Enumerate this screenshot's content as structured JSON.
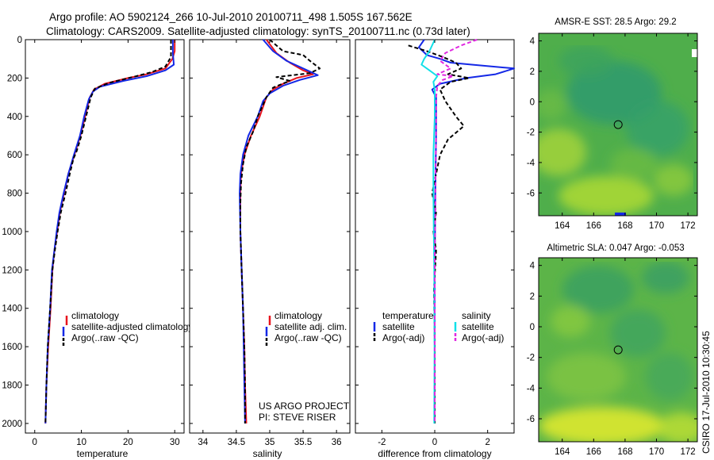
{
  "title_line1": "Argo profile: AO 5902124_266 10-Jul-2010 20100711_498 1.505S 167.562E",
  "title_line2": "Climatology: CARS2009. Satellite-adjusted climatology: synTS_20100711.nc (0.73d later)",
  "credit": [
    "US ARGO PROJECT",
    "PI: STEVE RISER"
  ],
  "footer": "CSIRO 17-Jul-2010 10:30:45",
  "colors": {
    "climatology": "#e8141e",
    "satellite": "#1428e6",
    "argo": "#000000",
    "sat_diff_salt": "#10e0e8",
    "argo_diff_salt": "#e028e0"
  },
  "chart_data": [
    {
      "type": "line",
      "id": "temperature",
      "xlabel": "temperature",
      "xlim": [
        -2,
        32
      ],
      "ylim": [
        2050,
        0
      ],
      "xticks": [
        0,
        10,
        20,
        30
      ],
      "yticks": [
        0,
        200,
        400,
        600,
        800,
        1000,
        1200,
        1400,
        1600,
        1800,
        2000
      ],
      "legend": [
        "climatology",
        "satellite-adjusted climatology",
        "Argo(..raw -QC)"
      ],
      "series": [
        {
          "name": "climatology",
          "color": "red",
          "dash": false,
          "points": [
            [
              30.0,
              0
            ],
            [
              30.0,
              60
            ],
            [
              29.5,
              100
            ],
            [
              28.0,
              150
            ],
            [
              24.0,
              180
            ],
            [
              20.0,
              200
            ],
            [
              15.0,
              230
            ],
            [
              12.7,
              260
            ],
            [
              11.8,
              300
            ],
            [
              10.8,
              400
            ],
            [
              9.8,
              500
            ],
            [
              8.5,
              600
            ],
            [
              7.2,
              700
            ],
            [
              6.3,
              800
            ],
            [
              5.4,
              900
            ],
            [
              4.8,
              1000
            ],
            [
              4.2,
              1100
            ],
            [
              3.8,
              1200
            ],
            [
              3.4,
              1400
            ],
            [
              2.9,
              1600
            ],
            [
              2.5,
              1800
            ],
            [
              2.3,
              2000
            ]
          ]
        },
        {
          "name": "satellite-adjusted climatology",
          "color": "blue",
          "dash": false,
          "points": [
            [
              29.6,
              0
            ],
            [
              29.6,
              70
            ],
            [
              29.8,
              130
            ],
            [
              28.0,
              160
            ],
            [
              24.0,
              190
            ],
            [
              19.0,
              215
            ],
            [
              14.0,
              245
            ],
            [
              12.5,
              270
            ],
            [
              11.6,
              310
            ],
            [
              10.6,
              400
            ],
            [
              9.7,
              500
            ],
            [
              8.4,
              600
            ],
            [
              7.2,
              700
            ],
            [
              6.2,
              800
            ],
            [
              5.3,
              900
            ],
            [
              4.7,
              1000
            ],
            [
              4.2,
              1100
            ],
            [
              3.7,
              1200
            ],
            [
              3.3,
              1400
            ],
            [
              2.8,
              1600
            ],
            [
              2.5,
              1800
            ],
            [
              2.3,
              2000
            ]
          ]
        },
        {
          "name": "Argo(..raw -QC)",
          "color": "black",
          "dash": true,
          "points": [
            [
              29.2,
              0
            ],
            [
              29.2,
              90
            ],
            [
              28.0,
              140
            ],
            [
              25.0,
              170
            ],
            [
              21.0,
              195
            ],
            [
              16.0,
              225
            ],
            [
              12.9,
              255
            ],
            [
              12.0,
              300
            ],
            [
              11.0,
              400
            ],
            [
              10.0,
              500
            ],
            [
              9.0,
              580
            ],
            [
              8.3,
              620
            ],
            [
              7.5,
              700
            ],
            [
              6.6,
              800
            ],
            [
              5.6,
              900
            ],
            [
              4.9,
              1000
            ],
            [
              4.3,
              1100
            ],
            [
              3.8,
              1200
            ],
            [
              3.3,
              1400
            ],
            [
              2.8,
              1600
            ],
            [
              2.5,
              1800
            ],
            [
              2.3,
              2000
            ]
          ]
        }
      ]
    },
    {
      "type": "line",
      "id": "salinity",
      "xlabel": "salinity",
      "xlim": [
        33.8,
        36.2
      ],
      "ylim": [
        2050,
        0
      ],
      "xticks": [
        34,
        34.5,
        35,
        35.5,
        36
      ],
      "yticks": [
        0,
        200,
        400,
        600,
        800,
        1000,
        1200,
        1400,
        1600,
        1800,
        2000
      ],
      "legend": [
        "climatology",
        "satellite adj. clim.",
        "Argo(..raw -QC)"
      ],
      "series": [
        {
          "name": "climatology",
          "color": "red",
          "dash": false,
          "points": [
            [
              34.95,
              0
            ],
            [
              35.1,
              70
            ],
            [
              35.3,
              120
            ],
            [
              35.5,
              160
            ],
            [
              35.65,
              180
            ],
            [
              35.4,
              200
            ],
            [
              35.2,
              230
            ],
            [
              35.05,
              260
            ],
            [
              34.95,
              300
            ],
            [
              34.85,
              400
            ],
            [
              34.72,
              500
            ],
            [
              34.62,
              600
            ],
            [
              34.57,
              700
            ],
            [
              34.56,
              800
            ],
            [
              34.56,
              1000
            ],
            [
              34.58,
              1200
            ],
            [
              34.6,
              1400
            ],
            [
              34.62,
              1600
            ],
            [
              34.63,
              1800
            ],
            [
              34.65,
              2000
            ]
          ]
        },
        {
          "name": "satellite adj. clim.",
          "color": "blue",
          "dash": false,
          "points": [
            [
              34.9,
              0
            ],
            [
              35.05,
              60
            ],
            [
              35.25,
              110
            ],
            [
              35.5,
              150
            ],
            [
              35.72,
              185
            ],
            [
              35.45,
              210
            ],
            [
              35.2,
              240
            ],
            [
              35.0,
              280
            ],
            [
              34.9,
              320
            ],
            [
              34.82,
              400
            ],
            [
              34.68,
              500
            ],
            [
              34.6,
              600
            ],
            [
              34.56,
              700
            ],
            [
              34.55,
              800
            ],
            [
              34.56,
              1000
            ],
            [
              34.58,
              1200
            ],
            [
              34.6,
              1400
            ],
            [
              34.61,
              1600
            ],
            [
              34.62,
              1800
            ],
            [
              34.63,
              2000
            ]
          ]
        },
        {
          "name": "Argo(..raw -QC)",
          "color": "black",
          "dash": true,
          "points": [
            [
              35.0,
              0
            ],
            [
              35.2,
              60
            ],
            [
              35.5,
              80
            ],
            [
              35.6,
              110
            ],
            [
              35.75,
              150
            ],
            [
              35.6,
              175
            ],
            [
              35.1,
              195
            ],
            [
              35.3,
              215
            ],
            [
              35.05,
              250
            ],
            [
              34.95,
              300
            ],
            [
              34.82,
              400
            ],
            [
              34.75,
              480
            ],
            [
              34.65,
              560
            ],
            [
              34.6,
              650
            ],
            [
              34.57,
              750
            ],
            [
              34.56,
              850
            ],
            [
              34.56,
              1000
            ],
            [
              34.58,
              1200
            ],
            [
              34.6,
              1400
            ],
            [
              34.62,
              1600
            ],
            [
              34.63,
              1800
            ],
            [
              34.63,
              2000
            ]
          ]
        }
      ]
    },
    {
      "type": "line",
      "id": "difference",
      "xlabel": "difference from climatology",
      "xlim": [
        -3,
        3
      ],
      "ylim": [
        2050,
        0
      ],
      "xticks": [
        -2,
        0,
        2
      ],
      "yticks": [
        0,
        200,
        400,
        600,
        800,
        1000,
        1200,
        1400,
        1600,
        1800,
        2000
      ],
      "legend_titles": [
        "temperature",
        "salinity"
      ],
      "legend": [
        "satellite",
        "Argo(-adj)",
        "satellite",
        "Argo(-adj)"
      ],
      "series": [
        {
          "name": "temperature satellite",
          "color": "blue",
          "dash": false,
          "points": [
            [
              -0.4,
              0
            ],
            [
              -0.6,
              40
            ],
            [
              -0.3,
              80
            ],
            [
              0.2,
              100
            ],
            [
              0.6,
              120
            ],
            [
              1.4,
              130
            ],
            [
              3.0,
              150
            ],
            [
              2.3,
              180
            ],
            [
              1.2,
              200
            ],
            [
              0.2,
              230
            ],
            [
              -0.1,
              260
            ],
            [
              0.05,
              300
            ],
            [
              0.05,
              500
            ],
            [
              0.02,
              800
            ],
            [
              0.0,
              1200
            ],
            [
              0.0,
              1600
            ],
            [
              0.0,
              2000
            ]
          ]
        },
        {
          "name": "temperature Argo(-adj)",
          "color": "black",
          "dash": true,
          "points": [
            [
              -1.0,
              30
            ],
            [
              -0.3,
              60
            ],
            [
              0.3,
              90
            ],
            [
              0.8,
              120
            ],
            [
              1.0,
              150
            ],
            [
              0.5,
              180
            ],
            [
              1.3,
              200
            ],
            [
              0.6,
              220
            ],
            [
              0.2,
              260
            ],
            [
              0.4,
              320
            ],
            [
              0.8,
              400
            ],
            [
              1.1,
              450
            ],
            [
              0.5,
              520
            ],
            [
              0.2,
              600
            ],
            [
              0.05,
              700
            ],
            [
              -0.1,
              800
            ],
            [
              0.05,
              900
            ],
            [
              -0.05,
              1000
            ],
            [
              0.05,
              1100
            ],
            [
              -0.03,
              1300
            ],
            [
              0.0,
              1600
            ],
            [
              0.0,
              2000
            ]
          ]
        },
        {
          "name": "salinity satellite",
          "color": "cyan",
          "dash": false,
          "points": [
            [
              0.0,
              0
            ],
            [
              -0.2,
              60
            ],
            [
              -0.4,
              100
            ],
            [
              -0.5,
              130
            ],
            [
              -0.2,
              160
            ],
            [
              0.1,
              190
            ],
            [
              -0.05,
              220
            ],
            [
              0.0,
              260
            ],
            [
              0.0,
              400
            ],
            [
              -0.05,
              600
            ],
            [
              -0.05,
              800
            ],
            [
              -0.02,
              1200
            ],
            [
              -0.01,
              1600
            ],
            [
              -0.02,
              2000
            ]
          ]
        },
        {
          "name": "salinity Argo(-adj)",
          "color": "magenta",
          "dash": true,
          "points": [
            [
              1.6,
              0
            ],
            [
              1.0,
              30
            ],
            [
              0.4,
              70
            ],
            [
              0.2,
              110
            ],
            [
              0.6,
              150
            ],
            [
              0.1,
              180
            ],
            [
              0.7,
              190
            ],
            [
              0.3,
              210
            ],
            [
              0.1,
              240
            ],
            [
              0.05,
              300
            ],
            [
              0.05,
              500
            ],
            [
              0.03,
              700
            ],
            [
              0.02,
              900
            ],
            [
              0.0,
              1100
            ],
            [
              0.0,
              1400
            ],
            [
              0.0,
              2000
            ]
          ]
        }
      ]
    },
    {
      "type": "heatmap",
      "id": "sst_map",
      "title": "AMSR-E SST: 28.5 Argo: 29.2",
      "xlim": [
        162.5,
        172.6
      ],
      "ylim": [
        -7.5,
        4.5
      ],
      "xticks": [
        164,
        166,
        168,
        170,
        172
      ],
      "yticks": [
        4,
        2,
        0,
        -2,
        -4,
        -6
      ],
      "marker": {
        "lon": 167.56,
        "lat": -1.505
      }
    },
    {
      "type": "heatmap",
      "id": "sla_map",
      "title": "Altimetric SLA: 0.047 Argo: -0.053",
      "xlim": [
        162.5,
        172.6
      ],
      "ylim": [
        -7.5,
        4.5
      ],
      "xticks": [
        164,
        166,
        168,
        170,
        172
      ],
      "yticks": [
        4,
        2,
        0,
        -2,
        -4,
        -6
      ],
      "marker": {
        "lon": 167.56,
        "lat": -1.505
      }
    }
  ]
}
